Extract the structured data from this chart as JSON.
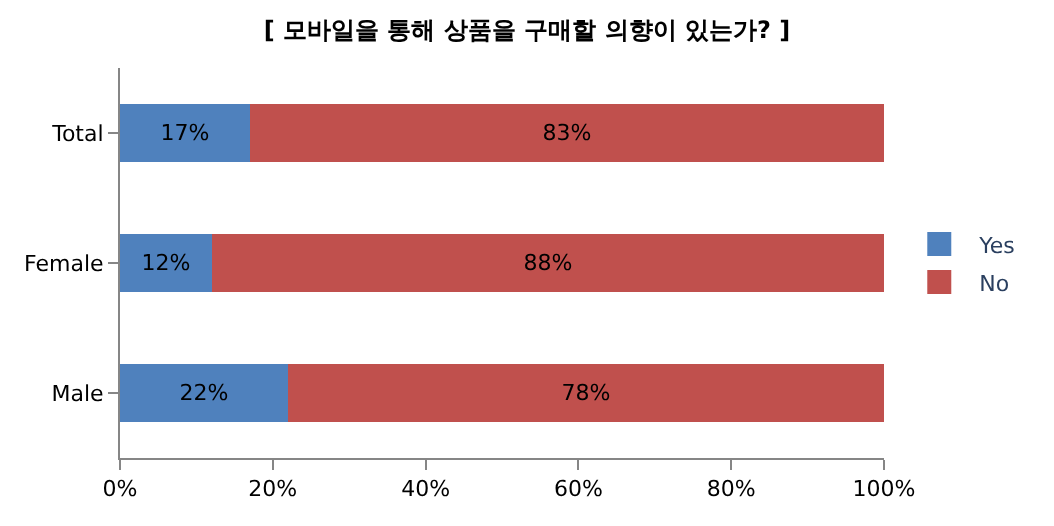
{
  "chart_data": {
    "type": "bar",
    "orientation": "horizontal",
    "stacked": true,
    "title": "[ 모바일을 통해 상품을 구매할 의향이 있는가? ]",
    "categories": [
      "Total",
      "Female",
      "Male"
    ],
    "series": [
      {
        "name": "Yes",
        "color": "#4f81bd",
        "values": [
          17,
          12,
          22
        ],
        "value_labels": [
          "17%",
          "12%",
          "22%"
        ]
      },
      {
        "name": "No",
        "color": "#c0504d",
        "values": [
          83,
          88,
          78
        ],
        "value_labels": [
          "83%",
          "88%",
          "78%"
        ]
      }
    ],
    "xlim": [
      0,
      100
    ],
    "xticks": [
      {
        "value": 0,
        "label": "0%"
      },
      {
        "value": 20,
        "label": "20%"
      },
      {
        "value": 40,
        "label": "40%"
      },
      {
        "value": 60,
        "label": "60%"
      },
      {
        "value": 80,
        "label": "80%"
      },
      {
        "value": 100,
        "label": "100%"
      }
    ],
    "legend": "right"
  }
}
